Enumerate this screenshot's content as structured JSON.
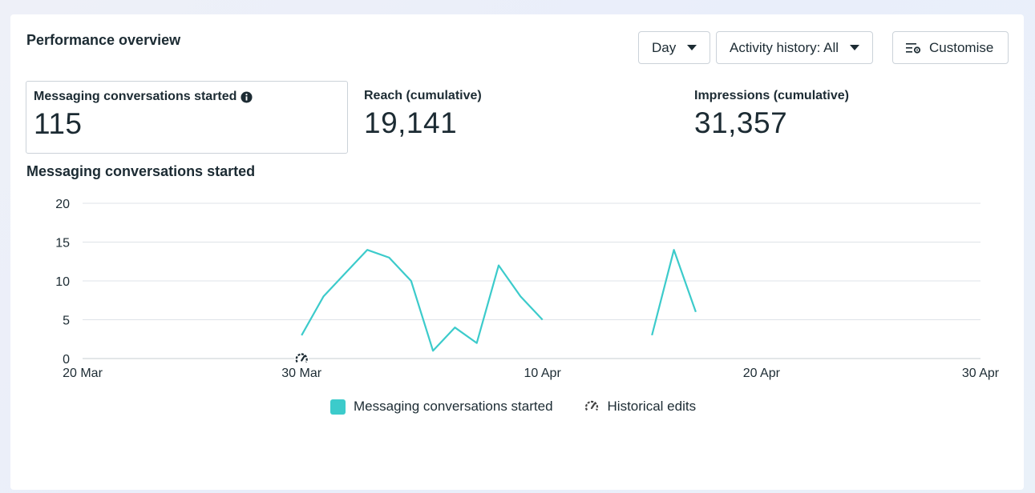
{
  "header": {
    "title": "Performance overview",
    "day_label": "Day",
    "activity_label": "Activity history: All",
    "customise_label": "Customise"
  },
  "metrics": [
    {
      "label": "Messaging conversations started",
      "value": "115"
    },
    {
      "label": "Reach (cumulative)",
      "value": "19,141"
    },
    {
      "label": "Impressions (cumulative)",
      "value": "31,357"
    }
  ],
  "colors": {
    "series": "#3ccbcb",
    "grid": "#dfe3e8",
    "text": "#1c2b33"
  },
  "icons": {
    "info": "info-icon",
    "customise": "customise-icon",
    "historical": "historical-edits-icon"
  },
  "chart_data": {
    "type": "line",
    "title": "Messaging conversations started",
    "xlabel": "",
    "ylabel": "",
    "ylim": [
      0,
      20
    ],
    "yticks": [
      0,
      5,
      10,
      15,
      20
    ],
    "xticks": [
      {
        "date": "2024-03-20",
        "label": "20 Mar"
      },
      {
        "date": "2024-03-30",
        "label": "30 Mar"
      },
      {
        "date": "2024-04-10",
        "label": "10 Apr"
      },
      {
        "date": "2024-04-20",
        "label": "20 Apr"
      },
      {
        "date": "2024-04-30",
        "label": "30 Apr"
      }
    ],
    "xlim": [
      "2024-03-20",
      "2024-04-30"
    ],
    "grid": true,
    "legend_position": "bottom",
    "series": [
      {
        "name": "Messaging conversations started",
        "segments": [
          [
            {
              "x": "2024-03-30",
              "y": 3
            },
            {
              "x": "2024-03-31",
              "y": 8
            },
            {
              "x": "2024-04-01",
              "y": 11
            },
            {
              "x": "2024-04-02",
              "y": 14
            },
            {
              "x": "2024-04-03",
              "y": 13
            },
            {
              "x": "2024-04-04",
              "y": 10
            },
            {
              "x": "2024-04-05",
              "y": 1
            },
            {
              "x": "2024-04-06",
              "y": 4
            },
            {
              "x": "2024-04-07",
              "y": 2
            },
            {
              "x": "2024-04-08",
              "y": 12
            },
            {
              "x": "2024-04-09",
              "y": 8
            },
            {
              "x": "2024-04-10",
              "y": 5
            }
          ],
          [
            {
              "x": "2024-04-15",
              "y": 3
            },
            {
              "x": "2024-04-16",
              "y": 14
            },
            {
              "x": "2024-04-17",
              "y": 6
            }
          ]
        ]
      }
    ],
    "annotations": [
      {
        "x": "2024-03-30",
        "label": "Historical edits"
      }
    ],
    "legend": [
      "Messaging conversations started",
      "Historical edits"
    ]
  }
}
